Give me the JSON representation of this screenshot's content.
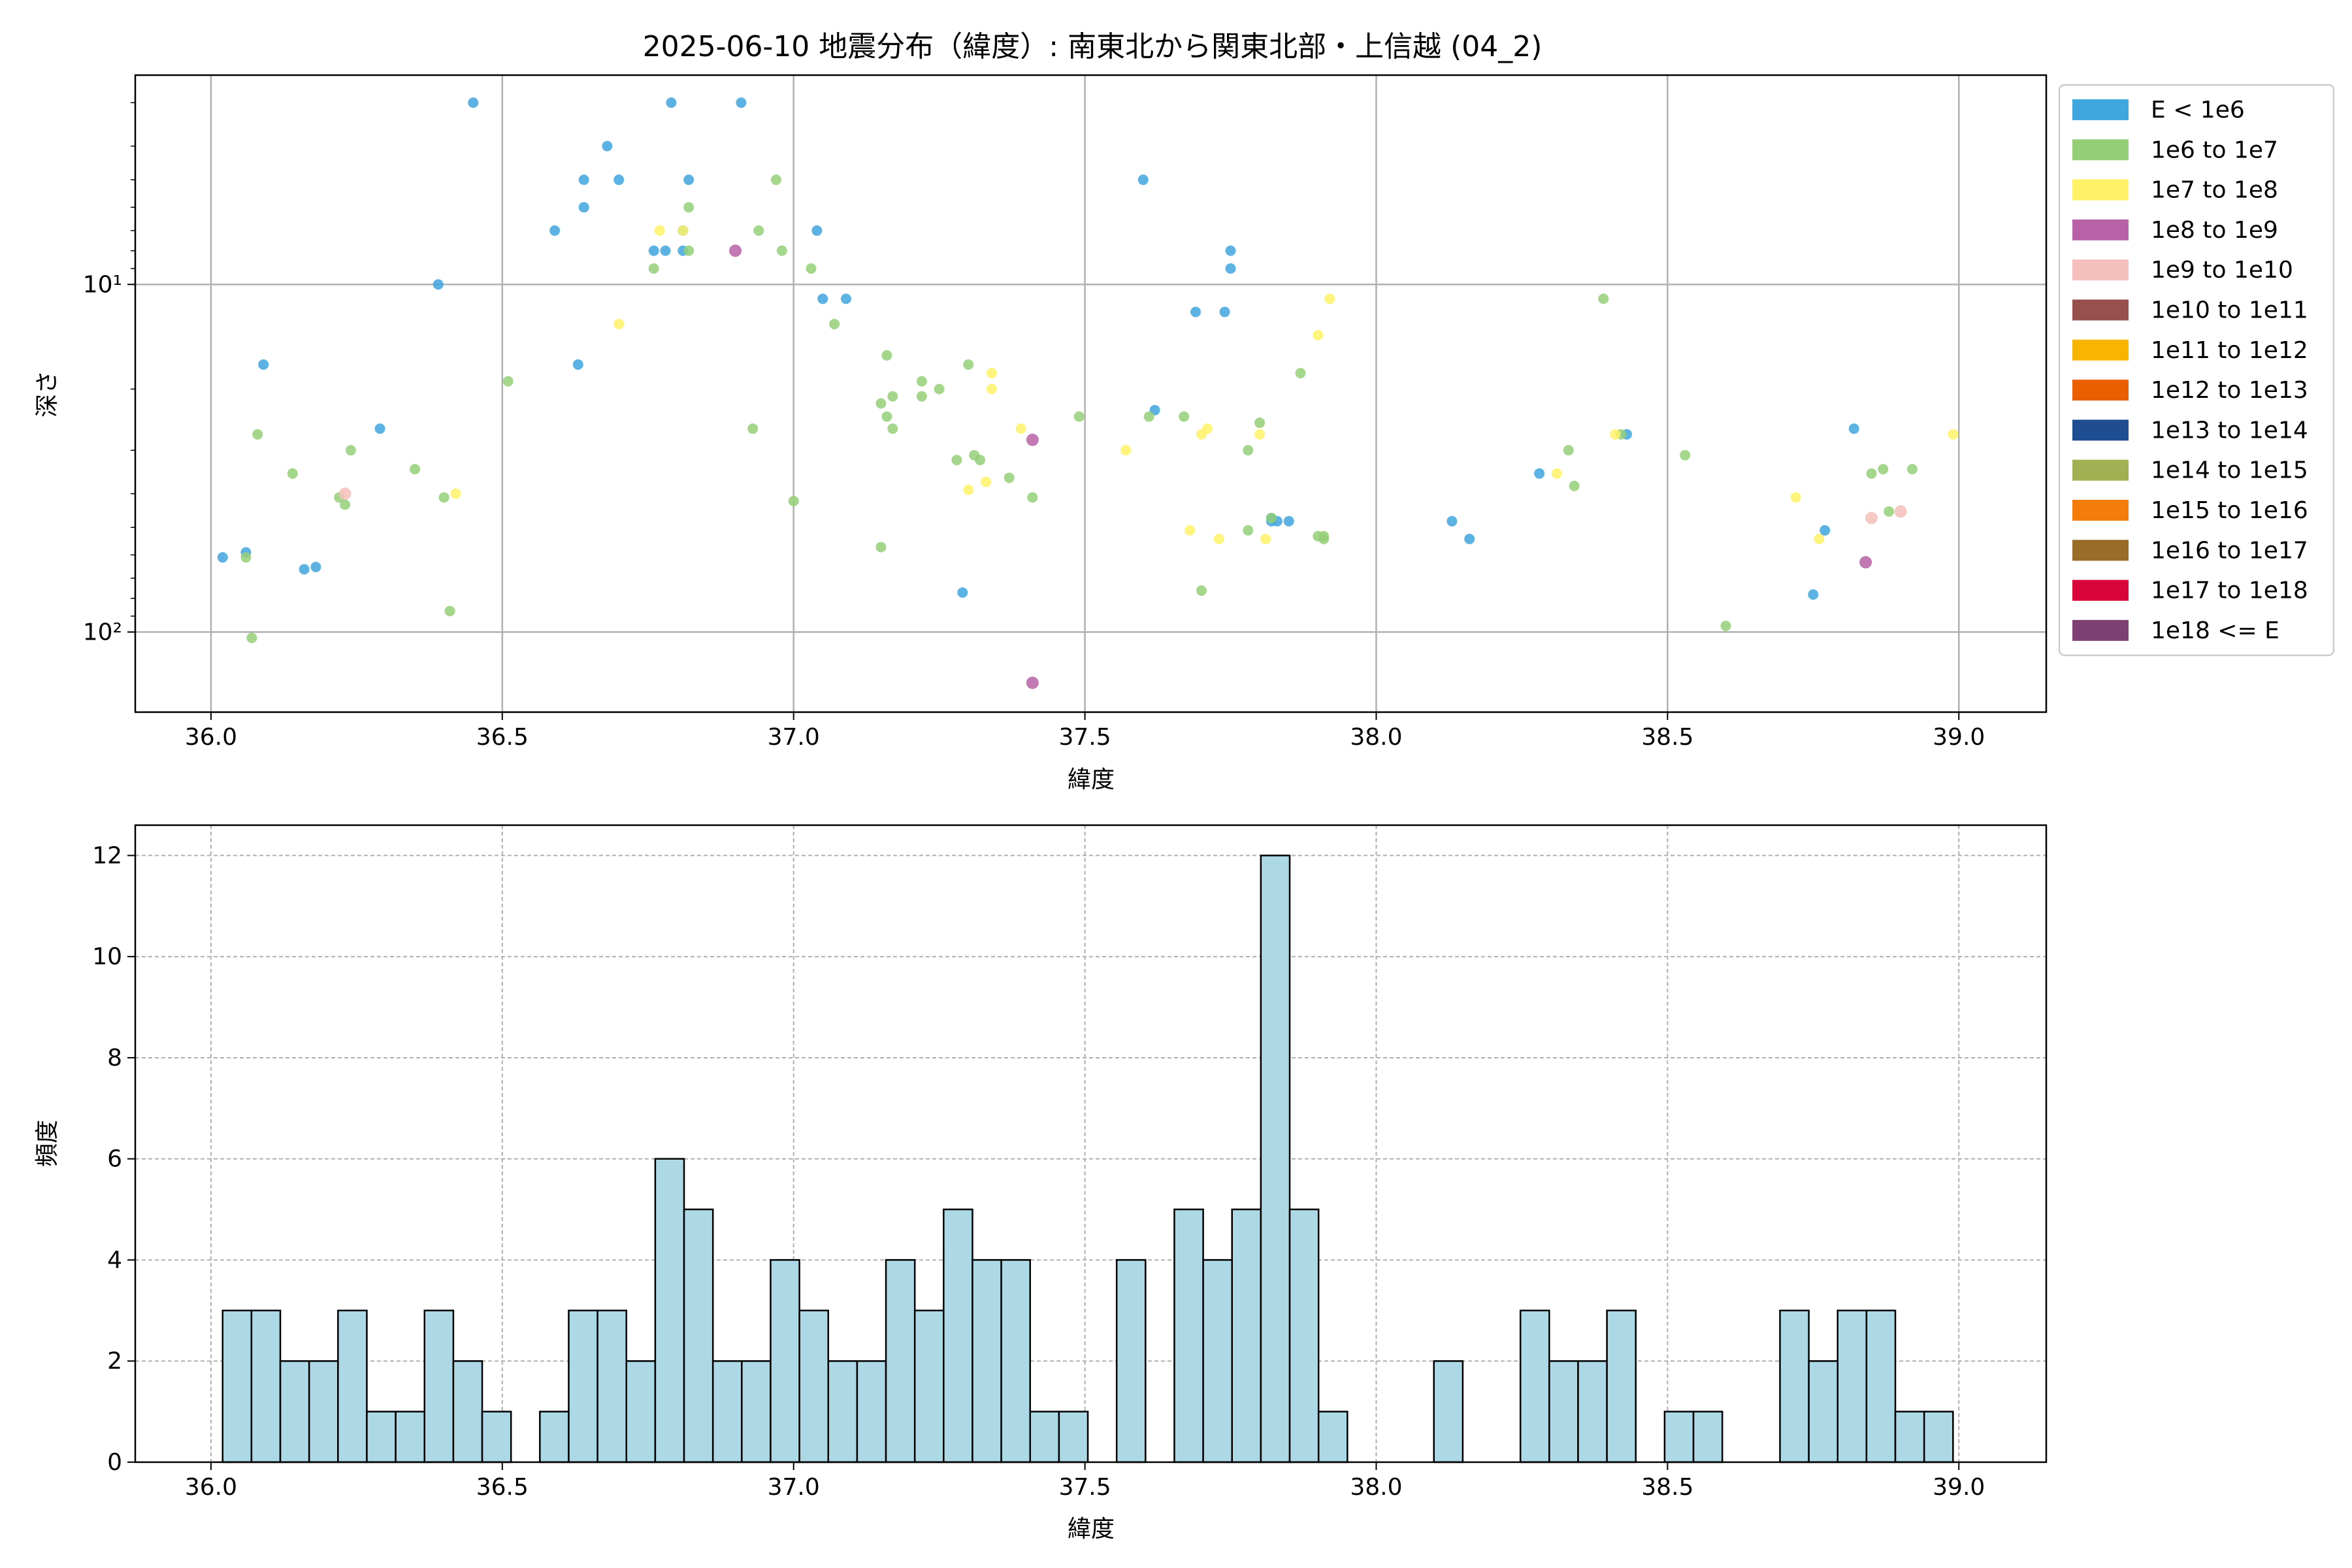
{
  "chart_data": [
    {
      "type": "scatter",
      "title": "2025-06-10 地震分布（緯度）: 南東北から関東北部・上信越 (04_2)",
      "xlabel": "緯度",
      "ylabel": "深さ",
      "xlim": [
        35.87,
        39.15
      ],
      "ylim": [
        170,
        2.5
      ],
      "yscale": "log",
      "y_inverted": true,
      "grid": true,
      "legend_position": "outside-right",
      "x_ticks": [
        "36.0",
        "36.5",
        "37.0",
        "37.5",
        "38.0",
        "38.5",
        "39.0"
      ],
      "y_ticks": [
        {
          "value": 10,
          "label": "10¹"
        },
        {
          "value": 100,
          "label": "10²"
        }
      ],
      "legend": [
        {
          "label": "E < 1e6",
          "color": "#3fa6de"
        },
        {
          "label": "1e6 to 1e7",
          "color": "#94cf78"
        },
        {
          "label": "1e7 to 1e8",
          "color": "#fff266"
        },
        {
          "label": "1e8 to 1e9",
          "color": "#b762a7"
        },
        {
          "label": "1e9 to 1e10",
          "color": "#f5c0bb"
        },
        {
          "label": "1e10 to 1e11",
          "color": "#98504c"
        },
        {
          "label": "1e11 to 1e12",
          "color": "#f8b500"
        },
        {
          "label": "1e12 to 1e13",
          "color": "#ea6000"
        },
        {
          "label": "1e13 to 1e14",
          "color": "#1e4d91"
        },
        {
          "label": "1e14 to 1e15",
          "color": "#a1b052"
        },
        {
          "label": "1e15 to 1e16",
          "color": "#f37c0d"
        },
        {
          "label": "1e16 to 1e17",
          "color": "#996c28"
        },
        {
          "label": "1e17 to 1e18",
          "color": "#d9053a"
        },
        {
          "label": "1e18 <= E",
          "color": "#7e3f72"
        }
      ],
      "points": [
        {
          "x": 36.02,
          "y": 61,
          "c": 0
        },
        {
          "x": 36.06,
          "y": 59,
          "c": 0
        },
        {
          "x": 36.09,
          "y": 17,
          "c": 0
        },
        {
          "x": 36.16,
          "y": 66,
          "c": 0
        },
        {
          "x": 36.18,
          "y": 65,
          "c": 0
        },
        {
          "x": 36.29,
          "y": 26,
          "c": 0
        },
        {
          "x": 36.39,
          "y": 10,
          "c": 0
        },
        {
          "x": 36.45,
          "y": 3,
          "c": 0
        },
        {
          "x": 36.59,
          "y": 7,
          "c": 0
        },
        {
          "x": 36.63,
          "y": 17,
          "c": 0
        },
        {
          "x": 36.64,
          "y": 5,
          "c": 0
        },
        {
          "x": 36.64,
          "y": 6,
          "c": 0
        },
        {
          "x": 36.68,
          "y": 4,
          "c": 0
        },
        {
          "x": 36.7,
          "y": 5,
          "c": 0
        },
        {
          "x": 36.76,
          "y": 8,
          "c": 0
        },
        {
          "x": 36.78,
          "y": 8,
          "c": 0
        },
        {
          "x": 36.79,
          "y": 3,
          "c": 0
        },
        {
          "x": 36.81,
          "y": 7,
          "c": 0
        },
        {
          "x": 36.81,
          "y": 8,
          "c": 0
        },
        {
          "x": 36.82,
          "y": 5,
          "c": 0
        },
        {
          "x": 36.91,
          "y": 3,
          "c": 0
        },
        {
          "x": 37.04,
          "y": 7,
          "c": 0
        },
        {
          "x": 37.05,
          "y": 11,
          "c": 0
        },
        {
          "x": 37.09,
          "y": 11,
          "c": 0
        },
        {
          "x": 37.29,
          "y": 77,
          "c": 0
        },
        {
          "x": 37.6,
          "y": 5,
          "c": 0
        },
        {
          "x": 37.62,
          "y": 23,
          "c": 0
        },
        {
          "x": 37.69,
          "y": 12,
          "c": 0
        },
        {
          "x": 37.74,
          "y": 12,
          "c": 0
        },
        {
          "x": 37.75,
          "y": 8,
          "c": 0
        },
        {
          "x": 37.75,
          "y": 9,
          "c": 0
        },
        {
          "x": 37.82,
          "y": 48,
          "c": 0
        },
        {
          "x": 37.82,
          "y": 47,
          "c": 0
        },
        {
          "x": 37.83,
          "y": 48,
          "c": 0
        },
        {
          "x": 37.85,
          "y": 48,
          "c": 0
        },
        {
          "x": 38.13,
          "y": 48,
          "c": 0
        },
        {
          "x": 38.16,
          "y": 54,
          "c": 0
        },
        {
          "x": 38.28,
          "y": 35,
          "c": 0
        },
        {
          "x": 38.43,
          "y": 27,
          "c": 0
        },
        {
          "x": 38.75,
          "y": 78,
          "c": 0
        },
        {
          "x": 38.77,
          "y": 51,
          "c": 0
        },
        {
          "x": 38.82,
          "y": 26,
          "c": 0
        },
        {
          "x": 36.06,
          "y": 61,
          "c": 1
        },
        {
          "x": 36.07,
          "y": 104,
          "c": 1
        },
        {
          "x": 36.08,
          "y": 27,
          "c": 1
        },
        {
          "x": 36.14,
          "y": 35,
          "c": 1
        },
        {
          "x": 36.22,
          "y": 41,
          "c": 1
        },
        {
          "x": 36.23,
          "y": 43,
          "c": 1
        },
        {
          "x": 36.24,
          "y": 30,
          "c": 1
        },
        {
          "x": 36.35,
          "y": 34,
          "c": 1
        },
        {
          "x": 36.4,
          "y": 41,
          "c": 1
        },
        {
          "x": 36.41,
          "y": 87,
          "c": 1
        },
        {
          "x": 36.51,
          "y": 19,
          "c": 1
        },
        {
          "x": 36.76,
          "y": 9,
          "c": 1
        },
        {
          "x": 36.82,
          "y": 6,
          "c": 1
        },
        {
          "x": 36.82,
          "y": 8,
          "c": 1
        },
        {
          "x": 36.93,
          "y": 26,
          "c": 1
        },
        {
          "x": 36.94,
          "y": 7,
          "c": 1
        },
        {
          "x": 36.97,
          "y": 5,
          "c": 1
        },
        {
          "x": 36.98,
          "y": 8,
          "c": 1
        },
        {
          "x": 37.0,
          "y": 42,
          "c": 1
        },
        {
          "x": 37.03,
          "y": 9,
          "c": 1
        },
        {
          "x": 37.07,
          "y": 13,
          "c": 1
        },
        {
          "x": 37.15,
          "y": 22,
          "c": 1
        },
        {
          "x": 37.15,
          "y": 57,
          "c": 1
        },
        {
          "x": 37.16,
          "y": 16,
          "c": 1
        },
        {
          "x": 37.16,
          "y": 24,
          "c": 1
        },
        {
          "x": 37.17,
          "y": 26,
          "c": 1
        },
        {
          "x": 37.17,
          "y": 21,
          "c": 1
        },
        {
          "x": 37.22,
          "y": 19,
          "c": 1
        },
        {
          "x": 37.22,
          "y": 21,
          "c": 1
        },
        {
          "x": 37.25,
          "y": 20,
          "c": 1
        },
        {
          "x": 37.28,
          "y": 32,
          "c": 1
        },
        {
          "x": 37.3,
          "y": 17,
          "c": 1
        },
        {
          "x": 37.31,
          "y": 31,
          "c": 1
        },
        {
          "x": 37.32,
          "y": 32,
          "c": 1
        },
        {
          "x": 37.37,
          "y": 36,
          "c": 1
        },
        {
          "x": 37.41,
          "y": 41,
          "c": 1
        },
        {
          "x": 37.49,
          "y": 24,
          "c": 1
        },
        {
          "x": 37.61,
          "y": 24,
          "c": 1
        },
        {
          "x": 37.67,
          "y": 24,
          "c": 1
        },
        {
          "x": 37.7,
          "y": 76,
          "c": 1
        },
        {
          "x": 37.78,
          "y": 51,
          "c": 1
        },
        {
          "x": 37.78,
          "y": 30,
          "c": 1
        },
        {
          "x": 37.8,
          "y": 25,
          "c": 1
        },
        {
          "x": 37.82,
          "y": 47,
          "c": 1
        },
        {
          "x": 37.87,
          "y": 18,
          "c": 1
        },
        {
          "x": 37.9,
          "y": 53,
          "c": 1
        },
        {
          "x": 37.91,
          "y": 54,
          "c": 1
        },
        {
          "x": 37.91,
          "y": 53,
          "c": 1
        },
        {
          "x": 38.33,
          "y": 30,
          "c": 1
        },
        {
          "x": 38.34,
          "y": 38,
          "c": 1
        },
        {
          "x": 38.39,
          "y": 11,
          "c": 1
        },
        {
          "x": 38.42,
          "y": 27,
          "c": 1
        },
        {
          "x": 38.53,
          "y": 31,
          "c": 1
        },
        {
          "x": 38.6,
          "y": 96,
          "c": 1
        },
        {
          "x": 38.85,
          "y": 35,
          "c": 1
        },
        {
          "x": 38.87,
          "y": 34,
          "c": 1
        },
        {
          "x": 38.88,
          "y": 45,
          "c": 1
        },
        {
          "x": 38.92,
          "y": 34,
          "c": 1
        },
        {
          "x": 36.42,
          "y": 40,
          "c": 2
        },
        {
          "x": 36.7,
          "y": 13,
          "c": 2
        },
        {
          "x": 36.77,
          "y": 7,
          "c": 2
        },
        {
          "x": 36.81,
          "y": 7,
          "c": 2
        },
        {
          "x": 37.3,
          "y": 39,
          "c": 2
        },
        {
          "x": 37.33,
          "y": 37,
          "c": 2
        },
        {
          "x": 37.34,
          "y": 20,
          "c": 2
        },
        {
          "x": 37.34,
          "y": 18,
          "c": 2
        },
        {
          "x": 37.39,
          "y": 26,
          "c": 2
        },
        {
          "x": 37.57,
          "y": 30,
          "c": 2
        },
        {
          "x": 37.68,
          "y": 51,
          "c": 2
        },
        {
          "x": 37.7,
          "y": 27,
          "c": 2
        },
        {
          "x": 37.71,
          "y": 26,
          "c": 2
        },
        {
          "x": 37.73,
          "y": 54,
          "c": 2
        },
        {
          "x": 37.8,
          "y": 27,
          "c": 2
        },
        {
          "x": 37.81,
          "y": 54,
          "c": 2
        },
        {
          "x": 37.9,
          "y": 14,
          "c": 2
        },
        {
          "x": 37.92,
          "y": 11,
          "c": 2
        },
        {
          "x": 38.31,
          "y": 35,
          "c": 2
        },
        {
          "x": 38.41,
          "y": 27,
          "c": 2
        },
        {
          "x": 38.72,
          "y": 41,
          "c": 2
        },
        {
          "x": 38.76,
          "y": 54,
          "c": 2
        },
        {
          "x": 38.99,
          "y": 27,
          "c": 2
        },
        {
          "x": 36.9,
          "y": 8,
          "c": 3
        },
        {
          "x": 37.41,
          "y": 28,
          "c": 3
        },
        {
          "x": 37.41,
          "y": 140,
          "c": 3
        },
        {
          "x": 38.84,
          "y": 63,
          "c": 3
        },
        {
          "x": 36.23,
          "y": 40,
          "c": 4
        },
        {
          "x": 38.85,
          "y": 47,
          "c": 4
        },
        {
          "x": 38.9,
          "y": 45,
          "c": 4
        }
      ]
    },
    {
      "type": "bar",
      "xlabel": "緯度",
      "ylabel": "頻度",
      "xlim": [
        35.87,
        39.15
      ],
      "ylim": [
        0,
        12.6
      ],
      "grid": true,
      "color": "#add8e6",
      "bin_start": 36.02,
      "bin_width": 0.0495,
      "x_ticks": [
        "36.0",
        "36.5",
        "37.0",
        "37.5",
        "38.0",
        "38.5",
        "39.0"
      ],
      "y_ticks": [
        "0",
        "2",
        "4",
        "6",
        "8",
        "10",
        "12"
      ],
      "values": [
        3,
        3,
        2,
        2,
        3,
        1,
        1,
        3,
        2,
        1,
        0,
        1,
        3,
        3,
        2,
        6,
        5,
        2,
        2,
        4,
        3,
        2,
        2,
        4,
        3,
        5,
        4,
        4,
        1,
        1,
        0,
        4,
        0,
        5,
        4,
        5,
        12,
        5,
        1,
        0,
        0,
        0,
        2,
        0,
        0,
        3,
        2,
        2,
        3,
        0,
        1,
        1,
        0,
        0,
        3,
        2,
        3,
        3,
        1,
        1
      ]
    }
  ]
}
